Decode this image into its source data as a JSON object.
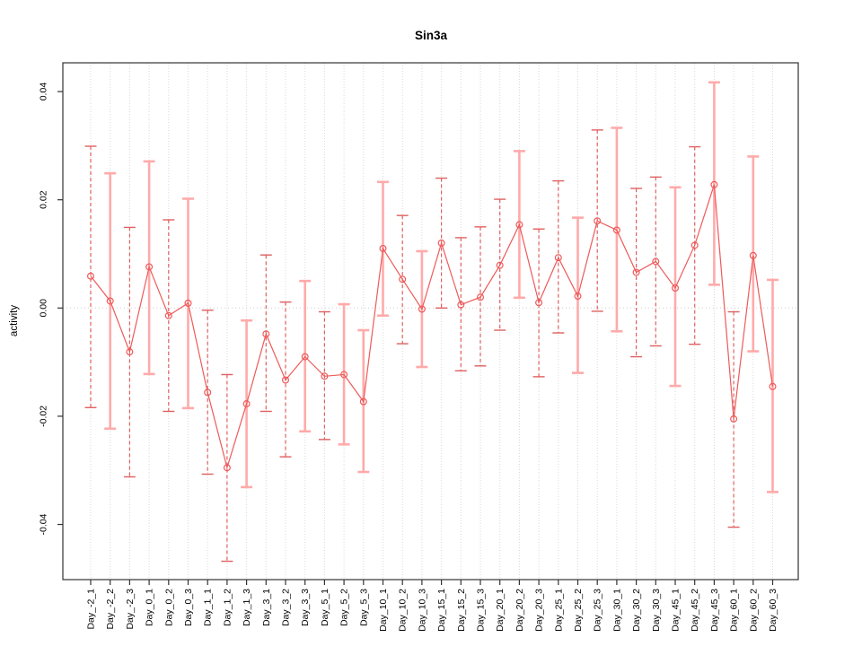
{
  "colors": {
    "series_line": "#ee5a5a",
    "point_stroke": "#ee5a5a",
    "errorbar_dashed": "#e06060",
    "errorbar_solid": "#ffaaaa",
    "gridline": "#d9d9d9",
    "zero_line": "#cccccc",
    "box_border": "#333333",
    "tick": "#333333",
    "text": "#000000",
    "background": "#ffffff"
  },
  "chart_data": {
    "type": "line",
    "title": "Sin3a",
    "xlabel": "",
    "ylabel": "activity",
    "legend": "none",
    "grid": "vertical dotted gridlines at every category; dotted horizontal line at y=0",
    "ylim": [
      -0.05,
      0.0455
    ],
    "yticks": [
      0.04,
      0.02,
      0.0,
      -0.02,
      -0.04
    ],
    "ytick_labels": [
      "0.04",
      "0.02",
      "0.00",
      "-0.02",
      "-0.04"
    ],
    "point_style": "open circles connected by straight red line segments, vertical error bars with end caps",
    "categories": [
      "Day_-2_1",
      "Day_-2_2",
      "Day_-2_3",
      "Day_0_1",
      "Day_0_2",
      "Day_0_3",
      "Day_1_1",
      "Day_1_2",
      "Day_1_3",
      "Day_3_1",
      "Day_3_2",
      "Day_3_3",
      "Day_5_1",
      "Day_5_2",
      "Day_5_3",
      "Day_10_1",
      "Day_10_2",
      "Day_10_3",
      "Day_15_1",
      "Day_15_2",
      "Day_15_3",
      "Day_20_1",
      "Day_20_2",
      "Day_20_3",
      "Day_25_1",
      "Day_25_2",
      "Day_25_3",
      "Day_30_1",
      "Day_30_2",
      "Day_30_3",
      "Day_45_1",
      "Day_45_2",
      "Day_45_3",
      "Day_60_1",
      "Day_60_2",
      "Day_60_3"
    ],
    "series": [
      {
        "name": "activity",
        "values": [
          0.0059,
          0.0013,
          -0.0081,
          0.0076,
          -0.0014,
          0.0009,
          -0.0156,
          -0.0295,
          -0.0177,
          -0.0048,
          -0.0133,
          -0.009,
          -0.0126,
          -0.0123,
          -0.0173,
          0.011,
          0.0053,
          -0.0002,
          0.012,
          0.0006,
          0.002,
          0.0079,
          0.0154,
          0.001,
          0.0093,
          0.0022,
          0.0161,
          0.0144,
          0.0066,
          0.0086,
          0.0037,
          0.0116,
          0.0228,
          -0.0205,
          0.0097,
          -0.0145
        ]
      }
    ],
    "error_upper": [
      0.0299,
      0.0249,
      0.0149,
      0.0271,
      0.0163,
      0.0202,
      -0.0004,
      -0.0123,
      -0.0023,
      0.0098,
      0.0011,
      0.005,
      -0.0007,
      0.0007,
      -0.0041,
      0.0233,
      0.0171,
      0.0105,
      0.024,
      0.013,
      0.015,
      0.0201,
      0.029,
      0.0146,
      0.0235,
      0.0167,
      0.0329,
      0.0333,
      0.0221,
      0.0242,
      0.0223,
      0.0298,
      0.0417,
      -0.0007,
      0.028,
      0.0052
    ],
    "error_lower": [
      -0.0184,
      -0.0223,
      -0.0312,
      -0.0122,
      -0.0191,
      -0.0185,
      -0.0307,
      -0.0468,
      -0.0331,
      -0.0191,
      -0.0275,
      -0.0228,
      -0.0243,
      -0.0252,
      -0.0303,
      -0.0014,
      -0.0066,
      -0.0109,
      0.0,
      -0.0116,
      -0.0107,
      -0.0041,
      0.0019,
      -0.0127,
      -0.0046,
      -0.012,
      -0.0006,
      -0.0043,
      -0.009,
      -0.007,
      -0.0144,
      -0.0067,
      0.0043,
      -0.0405,
      -0.008,
      -0.034
    ],
    "bar_styles": [
      "dashed",
      "solid",
      "dashed",
      "solid",
      "dashed",
      "solid",
      "dashed",
      "dashed",
      "solid",
      "dashed",
      "dashed",
      "solid",
      "dashed",
      "solid",
      "solid",
      "solid",
      "dashed",
      "solid",
      "dashed",
      "dashed",
      "dashed",
      "dashed",
      "solid",
      "dashed",
      "dashed",
      "solid",
      "dashed",
      "solid",
      "dashed",
      "dashed",
      "solid",
      "dashed",
      "solid",
      "dashed",
      "solid",
      "solid"
    ]
  }
}
